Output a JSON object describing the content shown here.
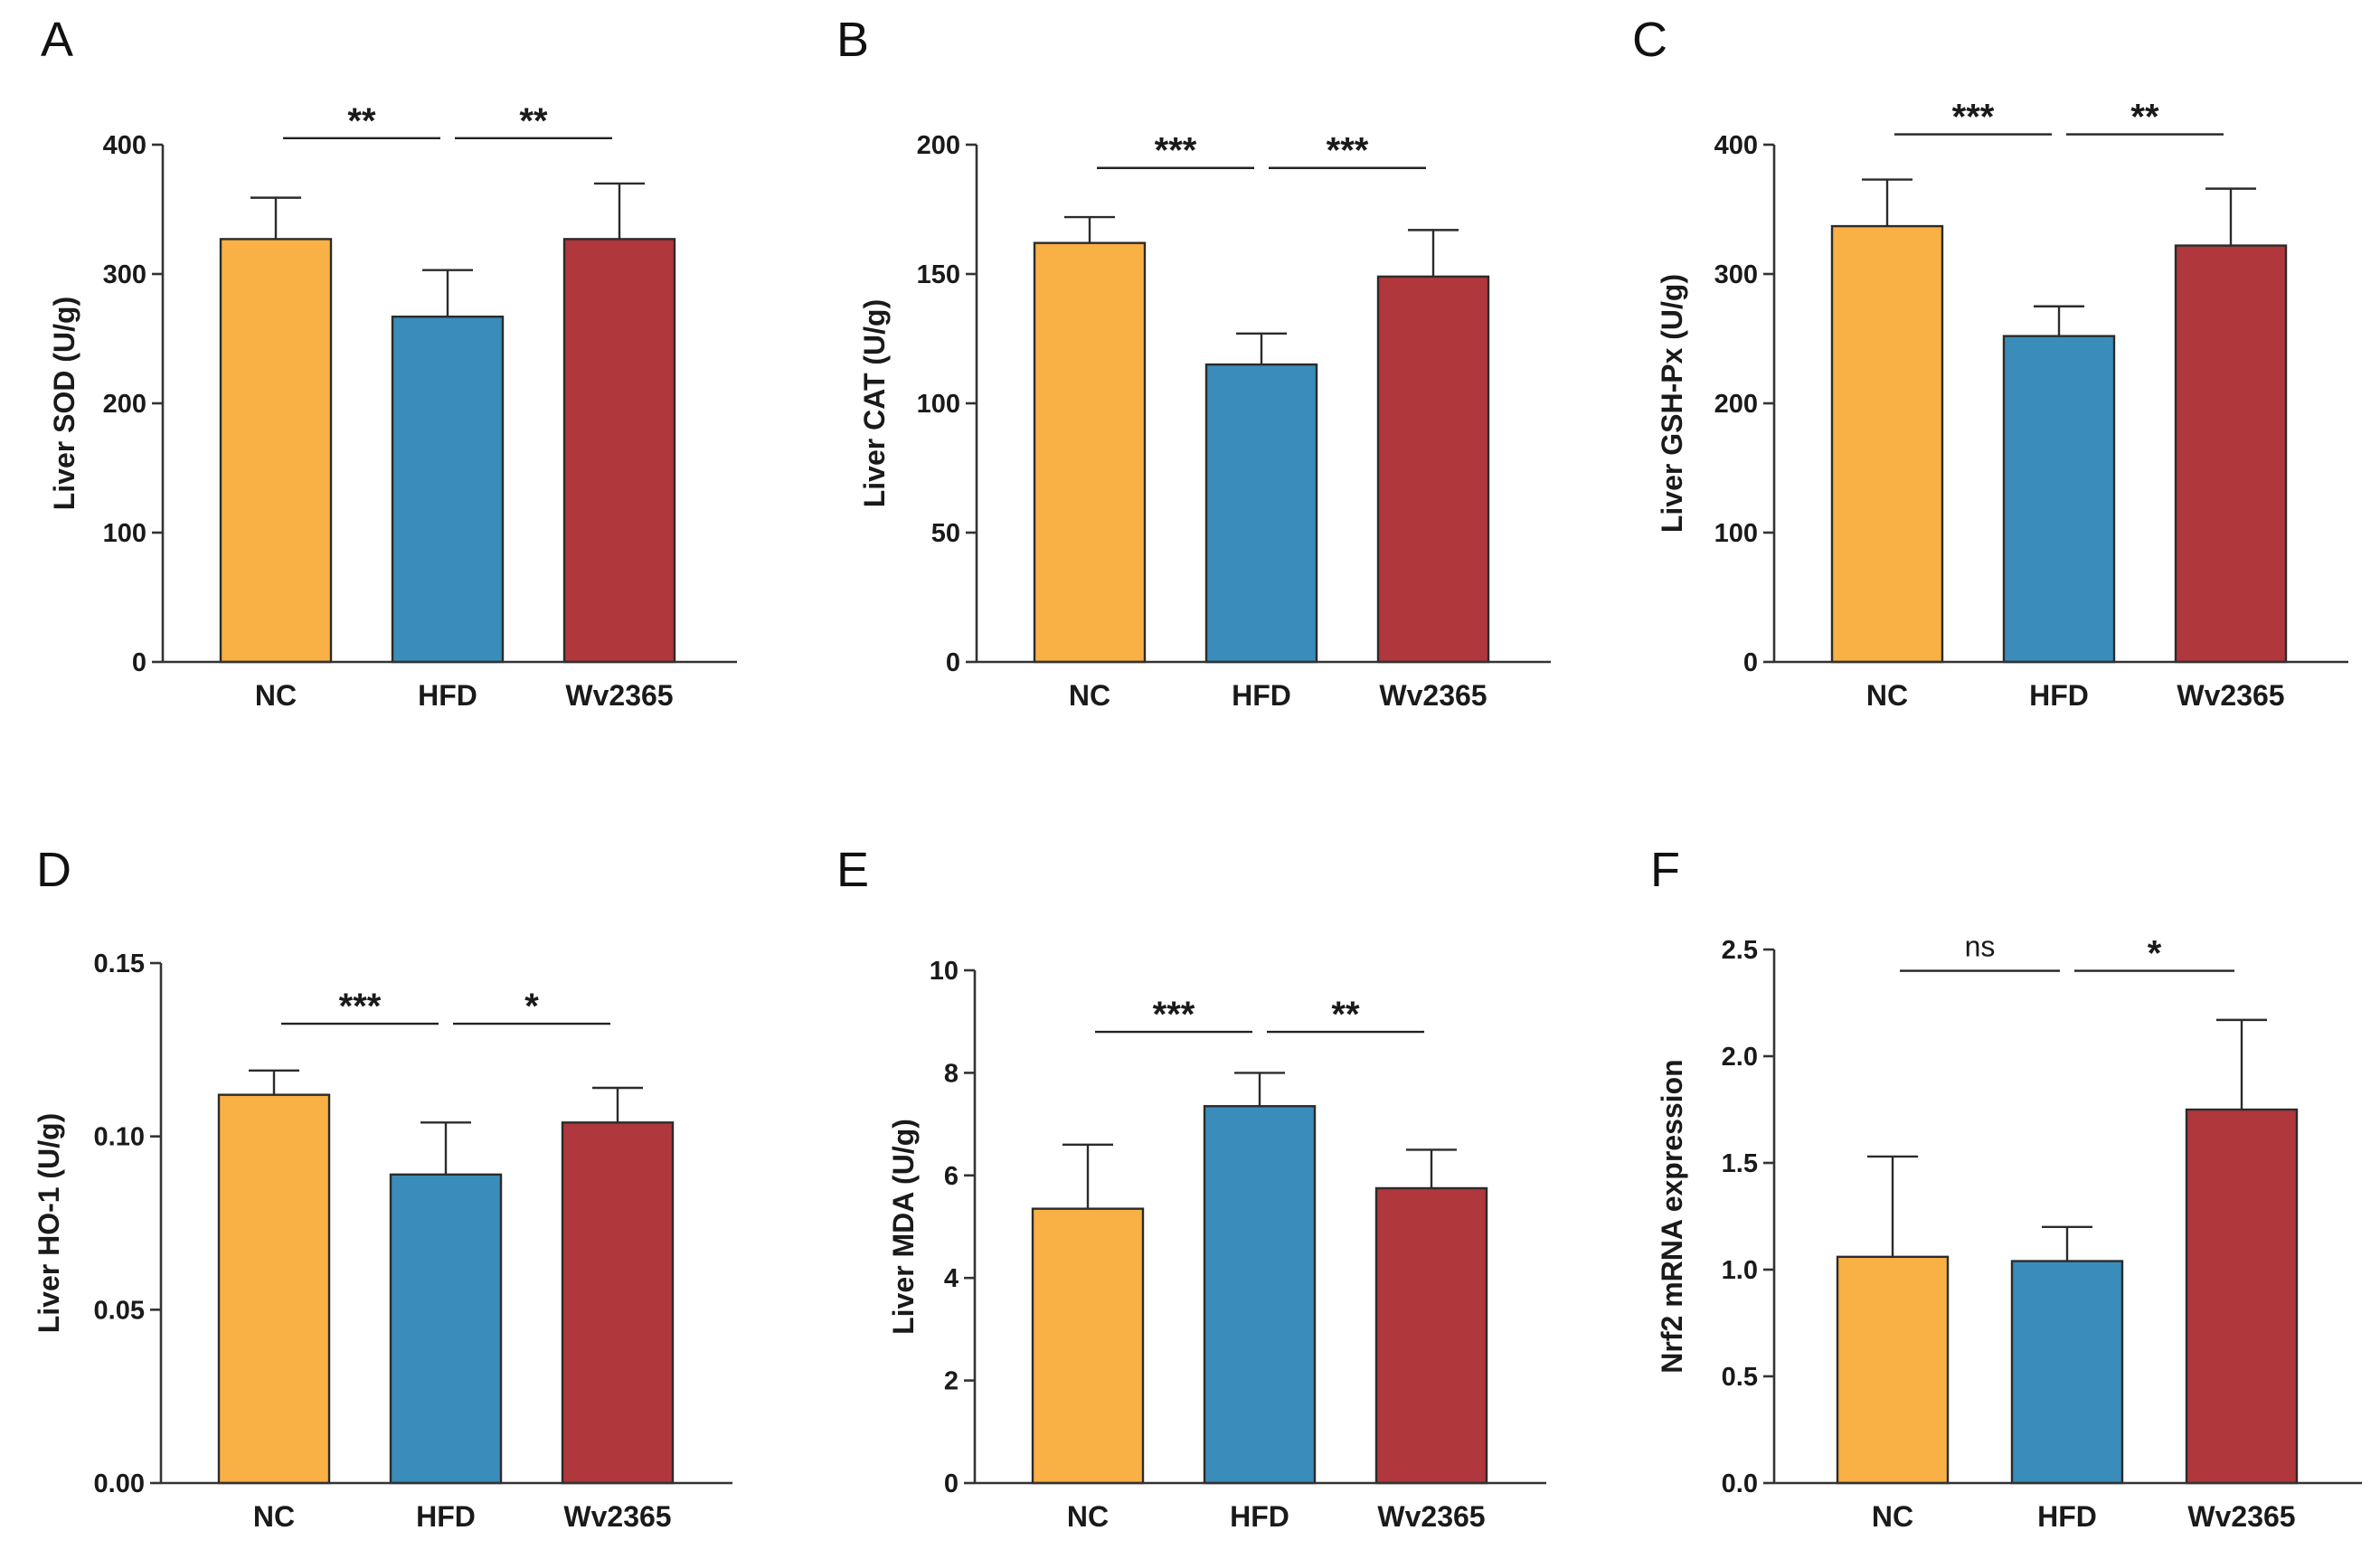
{
  "colors": {
    "NC": "#F9B044",
    "HFD": "#3A8DBA",
    "Wv2365": "#B0373C"
  },
  "chart_data": [
    {
      "panel": "A",
      "type": "bar",
      "ylabel": "Liver SOD (U/g)",
      "categories": [
        "NC",
        "HFD",
        "Wv2365"
      ],
      "values": [
        327,
        267,
        327
      ],
      "errors": [
        32,
        36,
        43
      ],
      "ylim": [
        0,
        400
      ],
      "yticks": [
        0,
        100,
        200,
        300,
        400
      ],
      "ytick_labels": [
        "0",
        "100",
        "200",
        "300",
        "400"
      ],
      "comparisons": [
        {
          "from": 0,
          "to": 1,
          "label": "**",
          "y": 405
        },
        {
          "from": 1,
          "to": 2,
          "label": "**",
          "y": 405
        }
      ]
    },
    {
      "panel": "B",
      "type": "bar",
      "ylabel": "Liver CAT (U/g)",
      "categories": [
        "NC",
        "HFD",
        "Wv2365"
      ],
      "values": [
        162,
        115,
        149
      ],
      "errors": [
        10,
        12,
        18
      ],
      "ylim": [
        0,
        200
      ],
      "yticks": [
        0,
        50,
        100,
        150,
        200
      ],
      "ytick_labels": [
        "0",
        "50",
        "100",
        "150",
        "200"
      ],
      "comparisons": [
        {
          "from": 0,
          "to": 1,
          "label": "***",
          "y": 191
        },
        {
          "from": 1,
          "to": 2,
          "label": "***",
          "y": 191
        }
      ]
    },
    {
      "panel": "C",
      "type": "bar",
      "ylabel": "Liver GSH-Px (U/g)",
      "categories": [
        "NC",
        "HFD",
        "Wv2365"
      ],
      "values": [
        337,
        252,
        322
      ],
      "errors": [
        36,
        23,
        44
      ],
      "ylim": [
        0,
        400
      ],
      "yticks": [
        0,
        100,
        200,
        300,
        400
      ],
      "ytick_labels": [
        "0",
        "100",
        "200",
        "300",
        "400"
      ],
      "comparisons": [
        {
          "from": 0,
          "to": 1,
          "label": "***",
          "y": 408
        },
        {
          "from": 1,
          "to": 2,
          "label": "**",
          "y": 408
        }
      ]
    },
    {
      "panel": "D",
      "type": "bar",
      "ylabel": "Liver HO-1 (U/g)",
      "categories": [
        "NC",
        "HFD",
        "Wv2365"
      ],
      "values": [
        0.112,
        0.089,
        0.104
      ],
      "errors": [
        0.007,
        0.015,
        0.01
      ],
      "ylim": [
        0,
        0.15
      ],
      "yticks": [
        0,
        0.05,
        0.1,
        0.15
      ],
      "ytick_labels": [
        "0.00",
        "0.05",
        "0.10",
        "0.15"
      ],
      "comparisons": [
        {
          "from": 0,
          "to": 1,
          "label": "***",
          "y": 0.1325
        },
        {
          "from": 1,
          "to": 2,
          "label": "*",
          "y": 0.1325
        }
      ]
    },
    {
      "panel": "E",
      "type": "bar",
      "ylabel": "Liver MDA (U/g)",
      "categories": [
        "NC",
        "HFD",
        "Wv2365"
      ],
      "values": [
        5.35,
        7.35,
        5.75
      ],
      "errors": [
        1.25,
        0.65,
        0.75
      ],
      "ylim": [
        0,
        10
      ],
      "yticks": [
        0,
        2,
        4,
        6,
        8,
        10
      ],
      "ytick_labels": [
        "0",
        "2",
        "4",
        "6",
        "8",
        "10"
      ],
      "comparisons": [
        {
          "from": 0,
          "to": 1,
          "label": "***",
          "y": 8.8
        },
        {
          "from": 1,
          "to": 2,
          "label": "**",
          "y": 8.8
        }
      ]
    },
    {
      "panel": "F",
      "type": "bar",
      "ylabel": "Nrf2 mRNA expression",
      "categories": [
        "NC",
        "HFD",
        "Wv2365"
      ],
      "values": [
        1.06,
        1.04,
        1.75
      ],
      "errors": [
        0.47,
        0.16,
        0.42
      ],
      "ylim": [
        0,
        2.5
      ],
      "yticks": [
        0,
        0.5,
        1.0,
        1.5,
        2.0,
        2.5
      ],
      "ytick_labels": [
        "0.0",
        "0.5",
        "1.0",
        "1.5",
        "2.0",
        "2.5"
      ],
      "comparisons": [
        {
          "from": 0,
          "to": 1,
          "label": "ns",
          "y": 2.4
        },
        {
          "from": 1,
          "to": 2,
          "label": "*",
          "y": 2.4
        }
      ]
    }
  ]
}
